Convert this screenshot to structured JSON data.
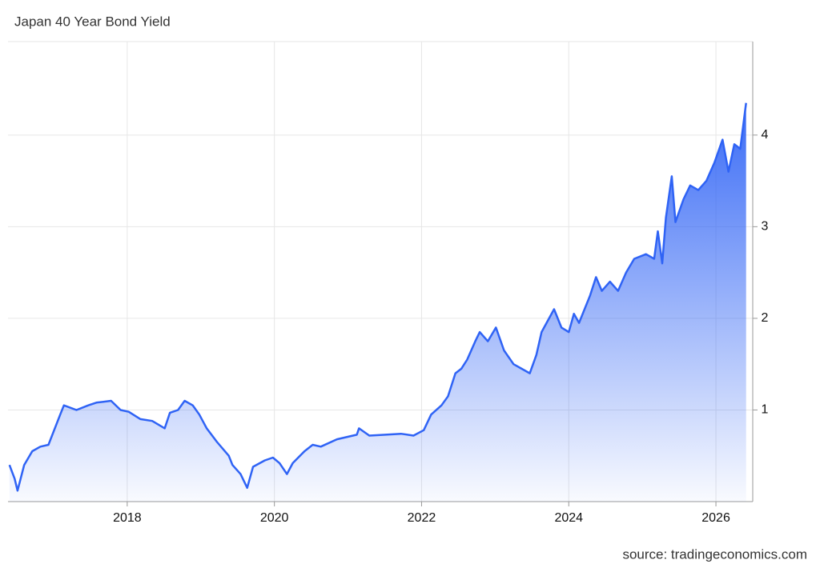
{
  "chart_data": {
    "type": "area",
    "title": "Japan 40 Year Bond Yield",
    "source": "source: tradingeconomics.com",
    "x": [
      2016.4,
      2016.47,
      2016.51,
      2016.6,
      2016.71,
      2016.82,
      2016.93,
      2017.09,
      2017.14,
      2017.31,
      2017.47,
      2017.58,
      2017.78,
      2017.91,
      2018.02,
      2018.18,
      2018.34,
      2018.51,
      2018.58,
      2018.69,
      2018.78,
      2018.89,
      2018.98,
      2019.08,
      2019.22,
      2019.38,
      2019.43,
      2019.54,
      2019.63,
      2019.71,
      2019.87,
      2019.98,
      2020.07,
      2020.17,
      2020.25,
      2020.41,
      2020.52,
      2020.63,
      2020.85,
      2021.12,
      2021.15,
      2021.29,
      2021.51,
      2021.72,
      2021.89,
      2022.03,
      2022.13,
      2022.27,
      2022.36,
      2022.46,
      2022.54,
      2022.62,
      2022.73,
      2022.79,
      2022.9,
      2023.01,
      2023.12,
      2023.25,
      2023.36,
      2023.47,
      2023.56,
      2023.63,
      2023.8,
      2023.9,
      2024.0,
      2024.07,
      2024.14,
      2024.29,
      2024.37,
      2024.45,
      2024.56,
      2024.67,
      2024.78,
      2024.89,
      2025.05,
      2025.16,
      2025.21,
      2025.27,
      2025.32,
      2025.4,
      2025.45,
      2025.56,
      2025.65,
      2025.76,
      2025.87,
      2025.98,
      2026.09,
      2026.17,
      2026.25,
      2026.33,
      2026.41
    ],
    "series": [
      {
        "name": "Japan 40 Year Bond Yield",
        "color": "#2f63f5",
        "values": [
          0.4,
          0.25,
          0.12,
          0.4,
          0.55,
          0.6,
          0.62,
          0.95,
          1.05,
          1.0,
          1.05,
          1.08,
          1.1,
          1.0,
          0.98,
          0.9,
          0.88,
          0.8,
          0.97,
          1.0,
          1.1,
          1.05,
          0.95,
          0.8,
          0.65,
          0.5,
          0.4,
          0.3,
          0.15,
          0.38,
          0.45,
          0.48,
          0.42,
          0.3,
          0.42,
          0.55,
          0.62,
          0.6,
          0.68,
          0.73,
          0.8,
          0.72,
          0.73,
          0.74,
          0.72,
          0.78,
          0.95,
          1.05,
          1.15,
          1.4,
          1.45,
          1.55,
          1.75,
          1.85,
          1.75,
          1.9,
          1.65,
          1.5,
          1.45,
          1.4,
          1.6,
          1.85,
          2.1,
          1.9,
          1.85,
          2.05,
          1.95,
          2.25,
          2.45,
          2.3,
          2.4,
          2.3,
          2.5,
          2.65,
          2.7,
          2.65,
          2.95,
          2.6,
          3.1,
          3.55,
          3.05,
          3.3,
          3.45,
          3.4,
          3.5,
          3.7,
          3.95,
          3.6,
          3.9,
          3.85,
          4.35
        ]
      }
    ],
    "xlim": [
      2016.38,
      2026.5
    ],
    "xticks": [
      2018,
      2020,
      2022,
      2024,
      2026
    ],
    "ylim": [
      0,
      5.02
    ],
    "yticks": [
      1,
      2,
      3,
      4
    ],
    "grid": true
  }
}
